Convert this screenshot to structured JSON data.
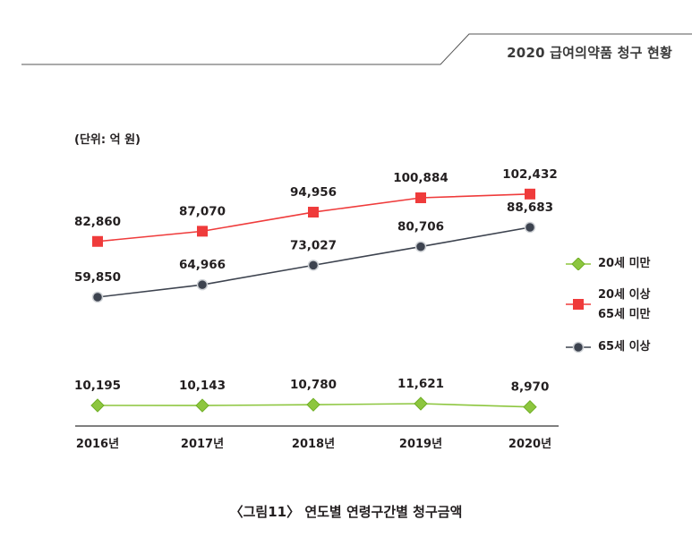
{
  "header": {
    "title": "2020 급여의약품 청구 현황"
  },
  "unit_label": "(단위: 억 원)",
  "caption": "〈그림11〉 연도별 연령구간별 청구금액",
  "legend": {
    "items": [
      {
        "label_lines": [
          "20세 미만"
        ],
        "color": "#8dc63f",
        "marker": "diamond"
      },
      {
        "label_lines": [
          "20세 이상",
          "65세 미만"
        ],
        "color": "#ef3b3b",
        "marker": "square"
      },
      {
        "label_lines": [
          "65세 이상"
        ],
        "color": "#3d434f",
        "marker": "circle"
      }
    ]
  },
  "chart_data": {
    "type": "line",
    "title": "연도별 연령구간별 청구금액",
    "ylabel": "억 원",
    "categories": [
      "2016년",
      "2017년",
      "2018년",
      "2019년",
      "2020년"
    ],
    "series": [
      {
        "name": "20세 이상 65세 미만",
        "color": "#ef3b3b",
        "line_color": "#ef3b3b",
        "marker": "square",
        "values": [
          82860,
          87070,
          94956,
          100884,
          102432
        ],
        "labels": [
          "82,860",
          "87,070",
          "94,956",
          "100,884",
          "102,432"
        ]
      },
      {
        "name": "65세 이상",
        "color": "#3d434f",
        "line_color": "#3d434f",
        "marker": "circle",
        "values": [
          59850,
          64966,
          73027,
          80706,
          88683
        ],
        "labels": [
          "59,850",
          "64,966",
          "73,027",
          "80,706",
          "88,683"
        ]
      },
      {
        "name": "20세 미만",
        "color": "#8dc63f",
        "line_color": "#8dc63f",
        "marker": "diamond",
        "values": [
          10195,
          10143,
          10780,
          11621,
          8970
        ],
        "labels": [
          "10,195",
          "10,143",
          "10,780",
          "11,621",
          "8,970"
        ]
      }
    ]
  }
}
